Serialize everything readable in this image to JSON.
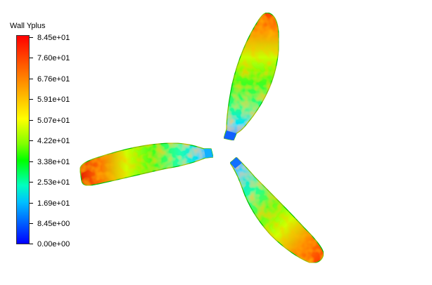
{
  "legend": {
    "title": "Wall Yplus",
    "ticks": [
      "8.45e+01",
      "7.60e+01",
      "6.76e+01",
      "5.91e+01",
      "5.07e+01",
      "4.22e+01",
      "3.38e+01",
      "2.53e+01",
      "1.69e+01",
      "8.45e+00",
      "0.00e+00"
    ],
    "colors": {
      "max": "#ff0000",
      "high": "#ff8000",
      "mid_high": "#ffff00",
      "mid": "#00ff00",
      "mid_low": "#00ffff",
      "low": "#0080ff",
      "min": "#0000ff"
    }
  },
  "scene": {
    "objects": [
      {
        "name": "blade-top",
        "icon": "blade-contour"
      },
      {
        "name": "blade-left",
        "icon": "blade-contour"
      },
      {
        "name": "blade-bottom-right",
        "icon": "blade-contour"
      }
    ]
  }
}
